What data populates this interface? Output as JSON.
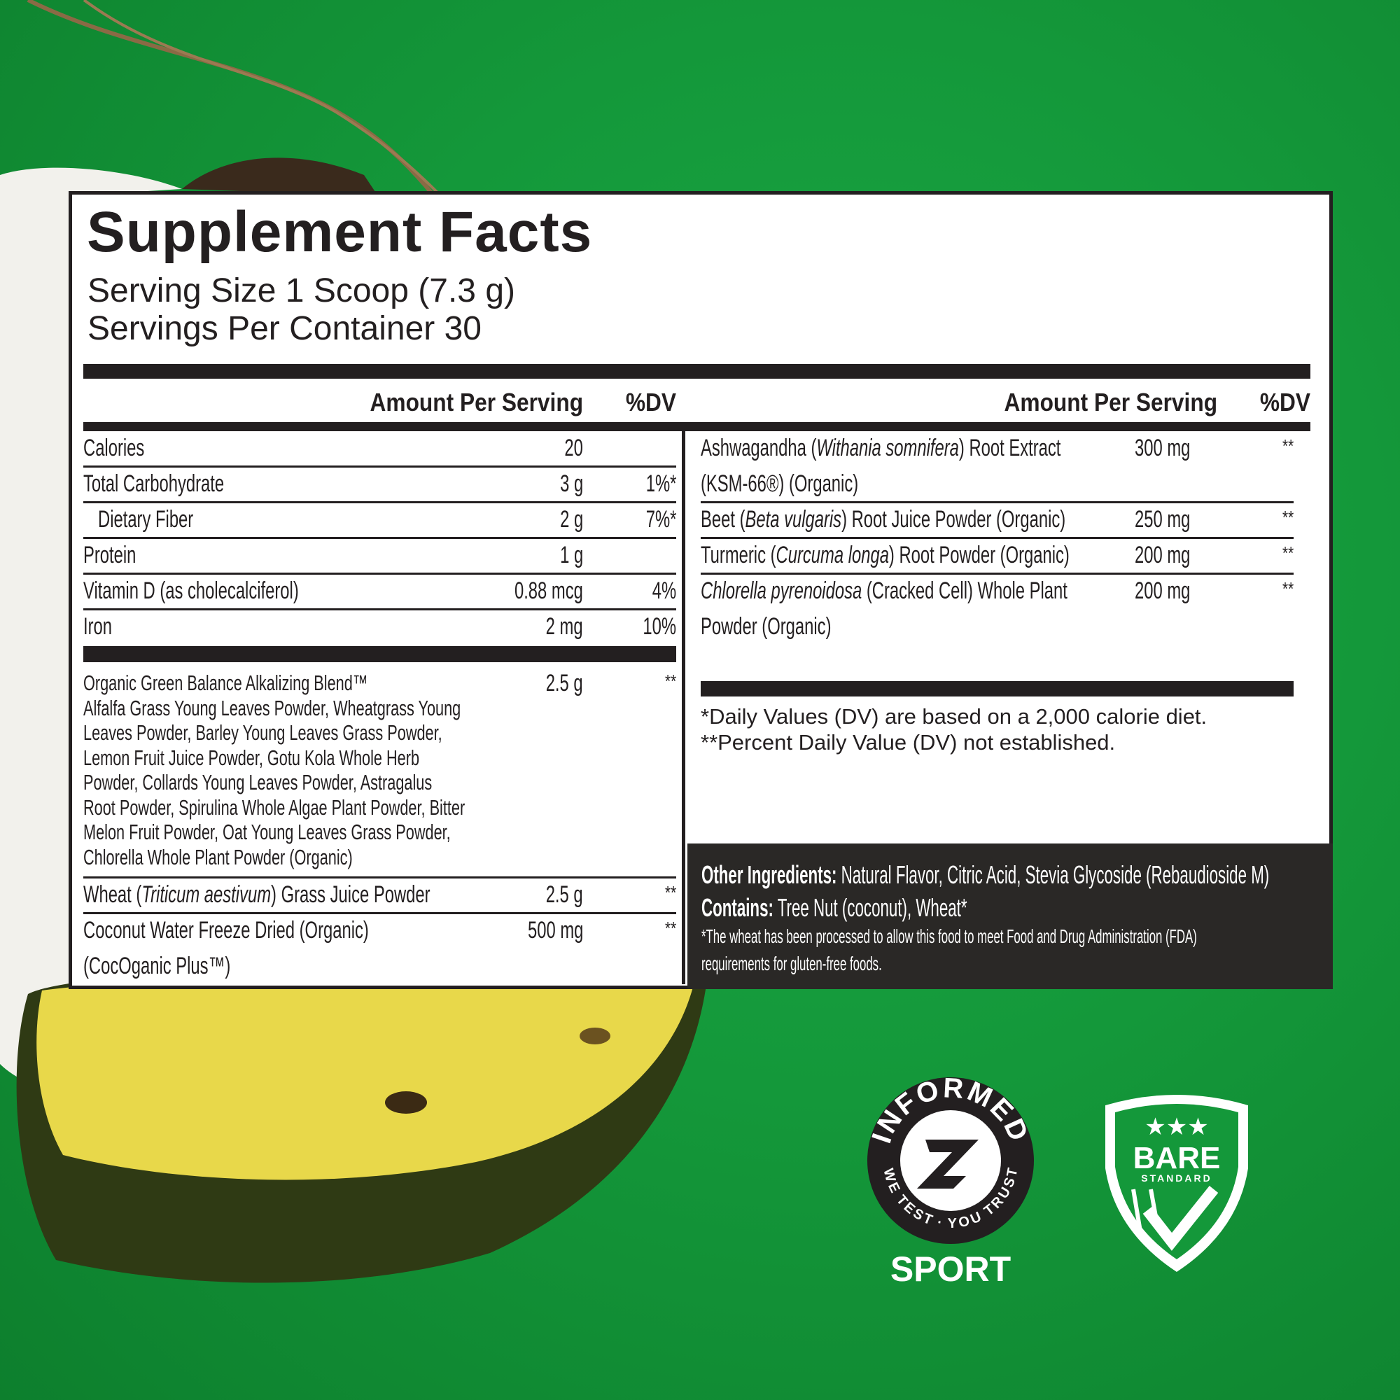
{
  "colors": {
    "background_green": "#14983a",
    "ink": "#231f20",
    "footer_box": "#2a2826",
    "pineapple": "#e8d84a"
  },
  "label": {
    "title": "Supplement Facts",
    "serving_size": "Serving Size 1 Scoop (7.3 g)",
    "servings_per_container": "Servings Per Container 30"
  },
  "left_header": {
    "amount": "Amount Per Serving",
    "dv": "%DV"
  },
  "right_header": {
    "amount": "Amount Per Serving",
    "dv": "%DV"
  },
  "left_rows": [
    {
      "name": "Calories",
      "amount": "20",
      "dv": ""
    },
    {
      "name": "Total Carbohydrate",
      "amount": "3 g",
      "dv": "1%*"
    },
    {
      "name": "Dietary Fiber",
      "amount": "2 g",
      "dv": "7%*"
    },
    {
      "name": "Protein",
      "amount": "1 g",
      "dv": ""
    },
    {
      "name": "Vitamin D (as cholecalciferol)",
      "amount": "0.88 mcg",
      "dv": "4%"
    },
    {
      "name": "Iron",
      "amount": "2 mg",
      "dv": "10%"
    }
  ],
  "blend": {
    "name": "Organic Green Balance Alkalizing Blend™",
    "ingredients": "Alfalfa Grass Young Leaves Powder, Wheatgrass Young Leaves Powder, Barley Young Leaves Grass Powder, Lemon Fruit Juice Powder, Gotu Kola Whole Herb Powder, Collards Young Leaves Powder, Astragalus Root Powder, Spirulina Whole Algae Plant Powder, Bitter Melon Fruit Powder, Oat Young Leaves Grass Powder, Chlorella Whole Plant Powder (Organic)",
    "amount": "2.5 g",
    "dv": "**"
  },
  "wheat": {
    "pre": "Wheat (",
    "italic": "Triticum aestivum",
    "post": ") Grass Juice Powder",
    "amount": "2.5 g",
    "dv": "**"
  },
  "coconut": {
    "line1": "Coconut Water Freeze Dried (Organic)",
    "line2": "(CocOganic Plus™)",
    "amount": "500 mg",
    "dv": "**"
  },
  "right_rows": [
    {
      "pre": "Ashwagandha (",
      "italic": "Withania somnifera",
      "post": ") Root Extract",
      "line2": "(KSM-66®) (Organic)",
      "amount": "300 mg",
      "dv": "**"
    },
    {
      "pre": "Beet (",
      "italic": "Beta vulgaris",
      "post": ") Root Juice Powder (Organic)",
      "amount": "250 mg",
      "dv": "**"
    },
    {
      "pre": "Turmeric (",
      "italic": "Curcuma longa",
      "post": ") Root Powder (Organic)",
      "amount": "200 mg",
      "dv": "**"
    },
    {
      "pre": "",
      "italic": "Chlorella pyrenoidosa",
      "post": " (Cracked Cell) Whole Plant",
      "line2": "Powder (Organic)",
      "amount": "200 mg",
      "dv": "**"
    }
  ],
  "footnotes": {
    "dv_basis": "*Daily Values (DV) are based on a 2,000 calorie diet.",
    "dv_not_established": "**Percent Daily Value (DV) not established."
  },
  "other": {
    "ingredients_label": "Other Ingredients:",
    "ingredients": " Natural Flavor, Citric Acid, Stevia Glycoside (Rebaudioside M)",
    "contains_label": "Contains:",
    "contains": " Tree Nut (coconut), Wheat*",
    "wheat_note_1": "*The wheat has been processed to allow this food to meet Food and Drug Administration (FDA)",
    "wheat_note_2": "requirements for gluten-free foods."
  },
  "badges": {
    "informed_top": "INFORMED",
    "informed_bottom": "WE TEST · YOU TRUST",
    "informed_sport": "SPORT",
    "bare_main": "BARE",
    "bare_sub": "STANDARD"
  }
}
